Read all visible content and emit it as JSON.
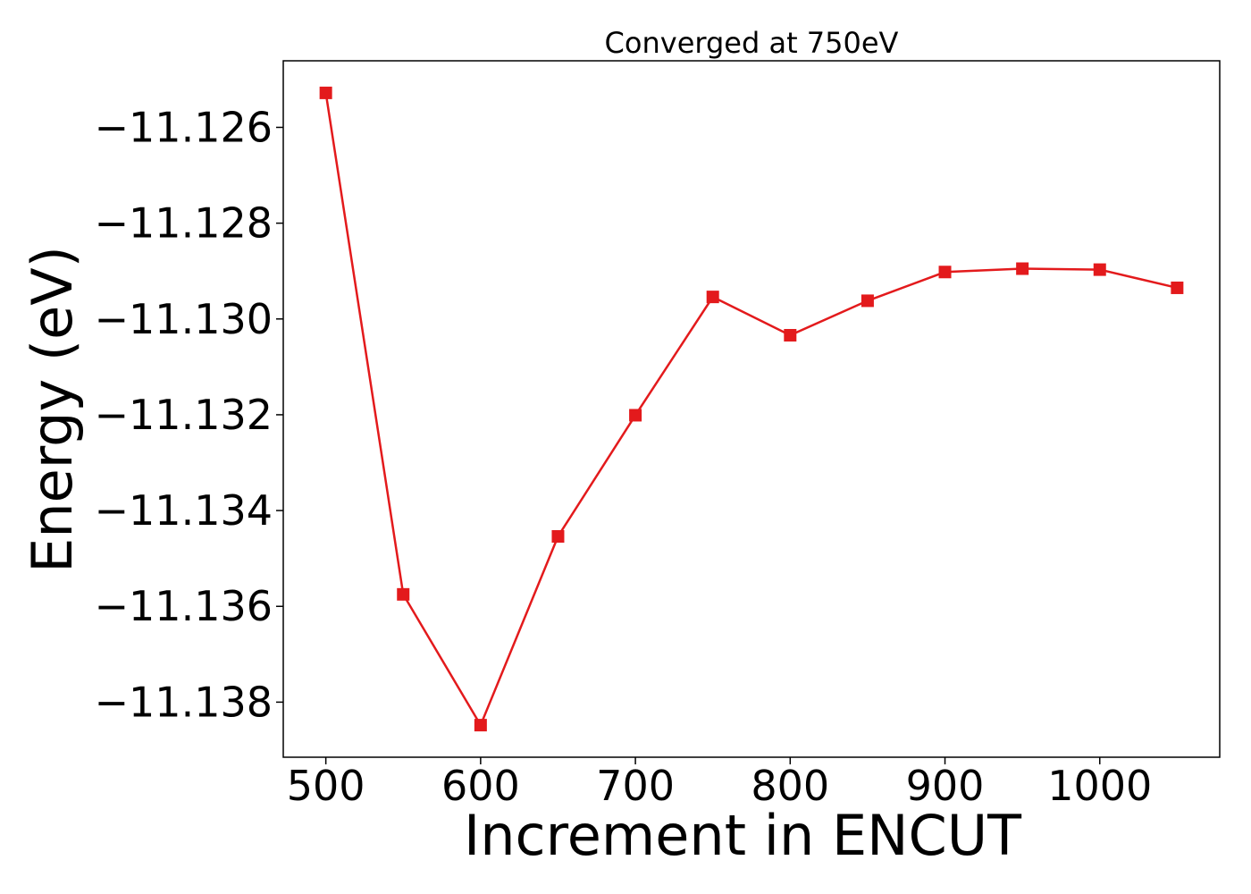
{
  "chart_data": {
    "type": "line",
    "title": "Converged at 750eV",
    "xlabel": "Increment in ENCUT",
    "ylabel": "Energy (eV)",
    "x": [
      500,
      550,
      600,
      650,
      700,
      750,
      800,
      850,
      900,
      950,
      1000,
      1050
    ],
    "series": [
      {
        "values": [
          -11.12528,
          -11.13575,
          -11.13848,
          -11.13454,
          -11.13201,
          -11.12954,
          -11.13034,
          -11.12962,
          -11.12902,
          -11.12895,
          -11.12897,
          -11.12935
        ],
        "color": "#e31a1c",
        "marker": "square"
      }
    ],
    "xlim": [
      472.5,
      1077.5
    ],
    "ylim": [
      -11.13915,
      -11.12461
    ],
    "xticks": [
      500,
      600,
      700,
      800,
      900,
      1000
    ],
    "xtick_labels": [
      "500",
      "600",
      "700",
      "800",
      "900",
      "1000"
    ],
    "yticks": [
      -11.126,
      -11.128,
      -11.13,
      -11.132,
      -11.134,
      -11.136,
      -11.138
    ],
    "ytick_labels": [
      "−11.126",
      "−11.128",
      "−11.130",
      "−11.132",
      "−11.134",
      "−11.136",
      "−11.138"
    ],
    "grid": false,
    "legend": "none"
  }
}
